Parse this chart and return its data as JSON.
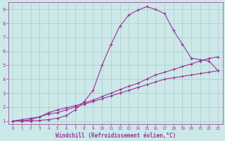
{
  "xlabel": "Windchill (Refroidissement éolien,°C)",
  "xlim": [
    -0.5,
    23.5
  ],
  "ylim": [
    0.8,
    9.5
  ],
  "xticks": [
    0,
    1,
    2,
    3,
    4,
    5,
    6,
    7,
    8,
    9,
    10,
    11,
    12,
    13,
    14,
    15,
    16,
    17,
    18,
    19,
    20,
    21,
    22,
    23
  ],
  "yticks": [
    1,
    2,
    3,
    4,
    5,
    6,
    7,
    8,
    9
  ],
  "bg_color": "#cce8e8",
  "line_color": "#993399",
  "grid_color": "#aacccc",
  "line1_x": [
    0,
    1,
    2,
    3,
    4,
    5,
    6,
    7,
    8,
    9,
    10,
    11,
    12,
    13,
    14,
    15,
    16,
    17,
    18,
    19,
    20,
    21,
    22,
    23
  ],
  "line1_y": [
    1.0,
    1.1,
    1.2,
    1.3,
    1.5,
    1.6,
    1.8,
    2.0,
    2.2,
    2.4,
    2.6,
    2.8,
    3.0,
    3.2,
    3.4,
    3.6,
    3.8,
    4.0,
    4.1,
    4.2,
    4.3,
    4.4,
    4.5,
    4.6
  ],
  "line2_x": [
    0,
    1,
    2,
    3,
    4,
    5,
    6,
    7,
    8,
    9,
    10,
    11,
    12,
    13,
    14,
    15,
    16,
    17,
    18,
    19,
    20,
    21,
    22,
    23
  ],
  "line2_y": [
    1.0,
    1.0,
    1.1,
    1.3,
    1.6,
    1.8,
    1.95,
    2.1,
    2.3,
    2.5,
    2.75,
    3.0,
    3.25,
    3.5,
    3.7,
    4.0,
    4.3,
    4.5,
    4.7,
    4.9,
    5.1,
    5.3,
    5.5,
    5.6
  ],
  "line3_x": [
    0,
    1,
    2,
    3,
    4,
    5,
    6,
    7,
    8,
    9,
    10,
    11,
    12,
    13,
    14,
    15,
    16,
    17,
    18,
    19,
    20,
    21,
    22,
    23
  ],
  "line3_y": [
    1.0,
    1.0,
    1.0,
    1.05,
    1.1,
    1.2,
    1.4,
    1.8,
    2.4,
    3.2,
    5.0,
    6.5,
    7.8,
    8.6,
    8.95,
    9.2,
    9.0,
    8.7,
    7.5,
    6.5,
    5.5,
    5.4,
    5.3,
    4.6
  ]
}
